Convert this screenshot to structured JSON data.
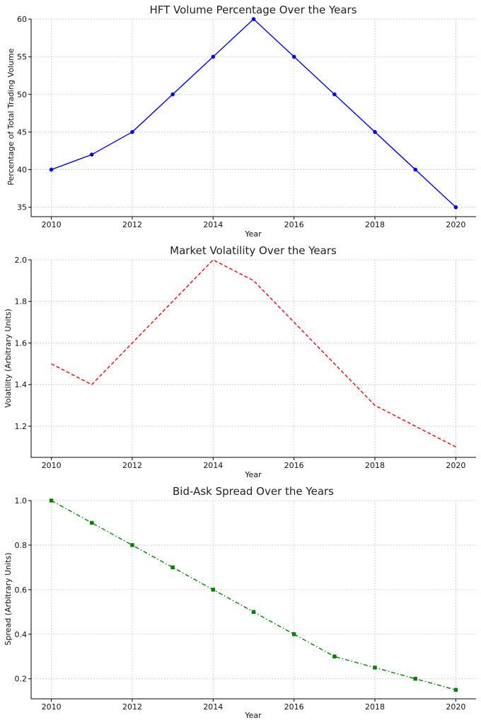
{
  "chart_data": [
    {
      "type": "line",
      "title": "HFT Volume Percentage Over the Years",
      "xlabel": "Year",
      "ylabel": "Percentage of Total Trading Volume",
      "x": [
        2010,
        2011,
        2012,
        2013,
        2014,
        2015,
        2016,
        2017,
        2018,
        2019,
        2020
      ],
      "xticks": [
        2010,
        2012,
        2014,
        2016,
        2018,
        2020
      ],
      "yticks": [
        35,
        40,
        45,
        50,
        55,
        60
      ],
      "xlim": [
        2009.5,
        2020.5
      ],
      "ylim": [
        33.75,
        60.0
      ],
      "grid": true,
      "series": [
        {
          "values": [
            40,
            42,
            45,
            50,
            55,
            60,
            55,
            50,
            45,
            40,
            35
          ],
          "color": "#0000ff",
          "linestyle": "solid",
          "marker": "circle"
        }
      ]
    },
    {
      "type": "line",
      "title": "Market Volatility Over the Years",
      "xlabel": "Year",
      "ylabel": "Volatility (Arbitrary Units)",
      "x": [
        2010,
        2011,
        2012,
        2013,
        2014,
        2015,
        2016,
        2017,
        2018,
        2019,
        2020
      ],
      "xticks": [
        2010,
        2012,
        2014,
        2016,
        2018,
        2020
      ],
      "yticks": [
        1.2,
        1.4,
        1.6,
        1.8,
        2.0
      ],
      "xlim": [
        2009.5,
        2020.5
      ],
      "ylim": [
        1.05,
        2.0
      ],
      "grid": true,
      "series": [
        {
          "values": [
            1.5,
            1.4,
            1.6,
            1.8,
            2.0,
            1.9,
            1.7,
            1.5,
            1.3,
            1.2,
            1.1
          ],
          "color": "#ff0000",
          "linestyle": "dashed",
          "marker": "none"
        }
      ]
    },
    {
      "type": "line",
      "title": "Bid-Ask Spread Over the Years",
      "xlabel": "Year",
      "ylabel": "Spread (Arbitrary Units)",
      "x": [
        2010,
        2011,
        2012,
        2013,
        2014,
        2015,
        2016,
        2017,
        2018,
        2019,
        2020
      ],
      "xticks": [
        2010,
        2012,
        2014,
        2016,
        2018,
        2020
      ],
      "yticks": [
        0.2,
        0.4,
        0.6,
        0.8,
        1.0
      ],
      "xlim": [
        2009.5,
        2020.5
      ],
      "ylim": [
        0.11,
        1.0
      ],
      "grid": true,
      "series": [
        {
          "values": [
            1.0,
            0.9,
            0.8,
            0.7,
            0.6,
            0.5,
            0.4,
            0.3,
            0.25,
            0.2,
            0.15
          ],
          "color": "#008000",
          "linestyle": "dashdot",
          "marker": "square"
        }
      ]
    }
  ]
}
